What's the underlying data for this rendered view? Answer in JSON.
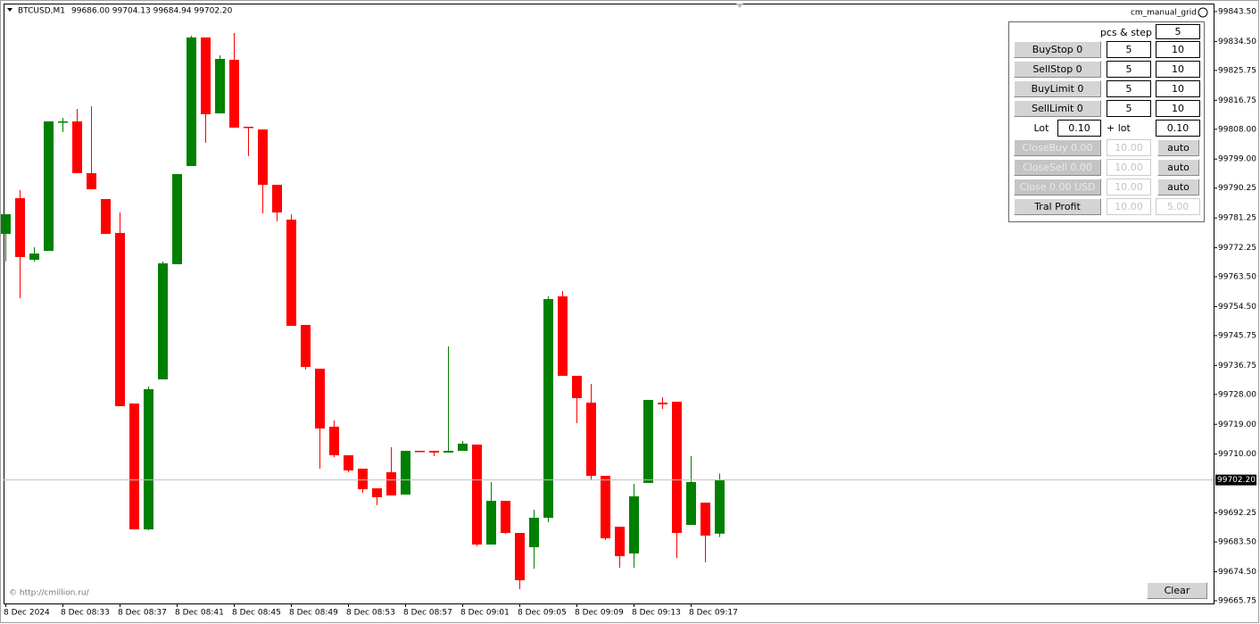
{
  "header": {
    "symbol": "BTCUSD,M1",
    "ohlc": "99686.00 99704.13 99684.94 99702.20"
  },
  "chart_data": {
    "type": "candlestick",
    "categories": [
      "8 Dec 2024",
      null,
      null,
      null,
      "8 Dec 08:33",
      null,
      null,
      null,
      "8 Dec 08:37",
      null,
      null,
      null,
      "8 Dec 08:41",
      null,
      null,
      null,
      "8 Dec 08:45",
      null,
      null,
      null,
      "8 Dec 08:49",
      null,
      null,
      null,
      "8 Dec 08:53",
      null,
      null,
      null,
      "8 Dec 08:57",
      null,
      null,
      null,
      "8 Dec 09:01",
      null,
      null,
      null,
      "8 Dec 09:05",
      null,
      null,
      null,
      "8 Dec 09:09",
      null,
      null,
      null,
      "8 Dec 09:13",
      null,
      null,
      null,
      "8 Dec 09:17",
      null,
      null
    ],
    "open": [
      99776.44,
      99787.21,
      99768.63,
      99771.32,
      99810.1,
      99810.37,
      99794.75,
      99786.94,
      99776.71,
      99725.27,
      99687.29,
      99732.54,
      99767.28,
      99796.91,
      99835.69,
      99812.8,
      99828.96,
      99808.76,
      99807.95,
      99791.25,
      99780.75,
      99748.97,
      99735.77,
      99718.27,
      99709.65,
      99705.61,
      99699.68,
      99704.53,
      99697.8,
      99710.99,
      99710.99,
      99710.46,
      99710.99,
      99712.88,
      99682.72,
      99695.91,
      99686.22,
      99681.91,
      99690.8,
      99757.59,
      99733.62,
      99725.54,
      99703.45,
      99688.1,
      99680.02,
      99701.3,
      99725.54,
      99725.81,
      99688.64,
      99695.37,
      99686.0
    ],
    "high": [
      99782.36,
      99789.64,
      99772.4,
      99810.37,
      99811.45,
      99814.14,
      99814.95,
      99786.94,
      99782.9,
      99725.27,
      99730.39,
      99768.09,
      99794.48,
      99836.23,
      99835.69,
      99830.3,
      99837.04,
      99808.76,
      99807.95,
      99791.25,
      99782.36,
      99748.97,
      99735.77,
      99720.15,
      99709.65,
      99705.61,
      99699.68,
      99712.07,
      99710.99,
      99710.99,
      99710.99,
      99742.5,
      99713.96,
      99712.88,
      99701.57,
      99695.91,
      99686.22,
      99693.22,
      99757.59,
      99759.2,
      99733.62,
      99731.19,
      99703.45,
      99688.1,
      99701.03,
      99726.35,
      99727.15,
      99725.81,
      99709.38,
      99695.37,
      99704.13
    ],
    "low": [
      99768.09,
      99757.05,
      99768.09,
      99771.32,
      99807.14,
      99794.75,
      99789.91,
      99776.44,
      99724.46,
      99687.29,
      99687.03,
      99732.54,
      99767.28,
      99796.91,
      99803.91,
      99812.8,
      99808.49,
      99799.87,
      99782.63,
      99780.21,
      99748.7,
      99735.5,
      99705.61,
      99709.11,
      99704.53,
      99698.34,
      99694.57,
      99697.53,
      99697.8,
      99710.73,
      99709.38,
      99710.46,
      99710.99,
      99682.18,
      99682.72,
      99685.95,
      99669.25,
      99675.44,
      99689.45,
      99733.62,
      99719.34,
      99702.38,
      99684.06,
      99675.71,
      99675.71,
      99701.3,
      99723.65,
      99678.68,
      99688.64,
      99677.33,
      99684.94
    ],
    "close": [
      99782.36,
      99769.44,
      99770.51,
      99810.37,
      99810.37,
      99794.75,
      99789.91,
      99776.44,
      99724.46,
      99687.29,
      99729.58,
      99767.55,
      99794.48,
      99835.69,
      99812.53,
      99829.23,
      99808.49,
      99808.49,
      99791.25,
      99782.9,
      99748.7,
      99736.31,
      99717.73,
      99709.65,
      99705.07,
      99699.41,
      99696.99,
      99697.53,
      99710.99,
      99710.73,
      99710.46,
      99710.99,
      99713.15,
      99682.72,
      99695.91,
      99686.22,
      99671.94,
      99690.8,
      99756.78,
      99733.62,
      99726.88,
      99703.45,
      99684.6,
      99679.21,
      99697.26,
      99726.35,
      99725.0,
      99686.22,
      99701.57,
      99685.41,
      99702.2
    ],
    "up_color": "#008000",
    "down_color": "#ff0000",
    "ylim": [
      99664.94,
      99845.92
    ],
    "yticks": [
      {
        "value": 99843.5,
        "label": "99843.50"
      },
      {
        "value": 99834.5,
        "label": "99834.50"
      },
      {
        "value": 99825.75,
        "label": "99825.75"
      },
      {
        "value": 99816.75,
        "label": "99816.75"
      },
      {
        "value": 99808,
        "label": "99808.00"
      },
      {
        "value": 99799,
        "label": "99799.00"
      },
      {
        "value": 99790.25,
        "label": "99790.25"
      },
      {
        "value": 99781.25,
        "label": "99781.25"
      },
      {
        "value": 99772.25,
        "label": "99772.25"
      },
      {
        "value": 99763.5,
        "label": "99763.50"
      },
      {
        "value": 99754.5,
        "label": "99754.50"
      },
      {
        "value": 99745.75,
        "label": "99745.75"
      },
      {
        "value": 99736.75,
        "label": "99736.75"
      },
      {
        "value": 99728,
        "label": "99728.00"
      },
      {
        "value": 99719,
        "label": "99719.00"
      },
      {
        "value": 99710,
        "label": "99710.00"
      },
      {
        "value": 99692.25,
        "label": "99692.25"
      },
      {
        "value": 99683.5,
        "label": "99683.50"
      },
      {
        "value": 99674.5,
        "label": "99674.50"
      },
      {
        "value": 99665.75,
        "label": "99665.75"
      }
    ],
    "current_price": {
      "value": 99702.2,
      "label": "99702.20"
    },
    "grid": false
  },
  "panel": {
    "title": "cm_manual_grid",
    "pcs_step_label": "pcs & step",
    "pcs_step": "5",
    "rows": [
      {
        "button": "BuyStop 0",
        "a": "5",
        "b": "10"
      },
      {
        "button": "SellStop 0",
        "a": "5",
        "b": "10"
      },
      {
        "button": "BuyLimit 0",
        "a": "5",
        "b": "10"
      },
      {
        "button": "SellLimit 0",
        "a": "5",
        "b": "10"
      }
    ],
    "lot_label": "Lot",
    "lot": "0.10",
    "plus_lot_label": "+ lot",
    "plus_lot": "0.10",
    "close_rows": [
      {
        "button": "CloseBuy 0.00",
        "value": "10.00",
        "action": "auto"
      },
      {
        "button": "CloseSell 0.00",
        "value": "10.00",
        "action": "auto"
      },
      {
        "button": "Close 0.00 USD",
        "value": "10.00",
        "action": "auto"
      }
    ],
    "tral": {
      "button": "Tral Profit",
      "a": "10.00",
      "b": "5.00"
    }
  },
  "footer": {
    "copyright": "© http://cmillion.ru/",
    "clear": "Clear"
  }
}
